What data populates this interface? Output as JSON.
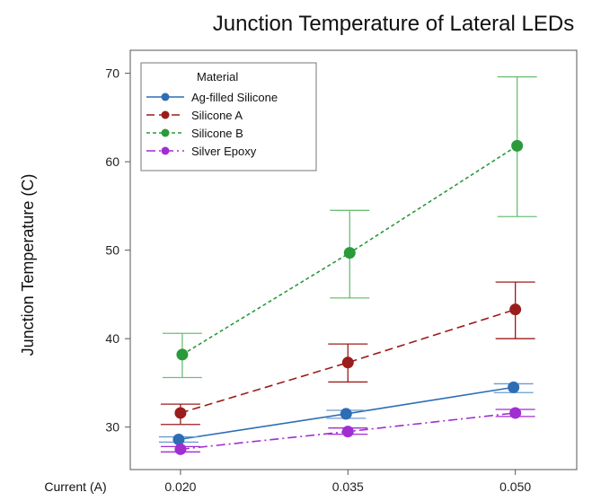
{
  "chart_data": {
    "type": "line",
    "title": "Junction Temperature of Lateral LEDs",
    "xlabel": "Current (A)",
    "ylabel": "Junction Temperature (C)",
    "categories": [
      "0.020",
      "0.035",
      "0.050"
    ],
    "x": [
      0.02,
      0.035,
      0.05
    ],
    "xlim": [
      0.0155,
      0.0555
    ],
    "ylim": [
      25.2,
      72.6
    ],
    "yticks": [
      30,
      40,
      50,
      60,
      70
    ],
    "grid": false,
    "legend": {
      "title": "Material",
      "position": "top-left"
    },
    "series": [
      {
        "name": "Ag-filled Silicone",
        "color": "#2E6DB4",
        "line_style": "solid",
        "values": [
          28.6,
          31.5,
          34.5
        ],
        "error_low": [
          28.3,
          31.0,
          33.9
        ],
        "error_high": [
          28.9,
          31.9,
          34.9
        ]
      },
      {
        "name": "Silicone A",
        "color": "#9B1C1C",
        "line_style": "dashed",
        "values": [
          31.6,
          37.3,
          43.3
        ],
        "error_low": [
          30.3,
          35.1,
          40.0
        ],
        "error_high": [
          32.6,
          39.4,
          46.4
        ]
      },
      {
        "name": "Silicone B",
        "color": "#2A9A3A",
        "line_style": "dotted",
        "values": [
          38.2,
          49.7,
          61.8
        ],
        "error_low": [
          35.6,
          44.6,
          53.8
        ],
        "error_high": [
          40.6,
          54.5,
          69.6
        ]
      },
      {
        "name": "Silver Epoxy",
        "color": "#A12ED1",
        "line_style": "dashdot",
        "values": [
          27.5,
          29.5,
          31.6
        ],
        "error_low": [
          27.2,
          29.2,
          31.2
        ],
        "error_high": [
          27.8,
          29.9,
          32.0
        ]
      }
    ]
  }
}
